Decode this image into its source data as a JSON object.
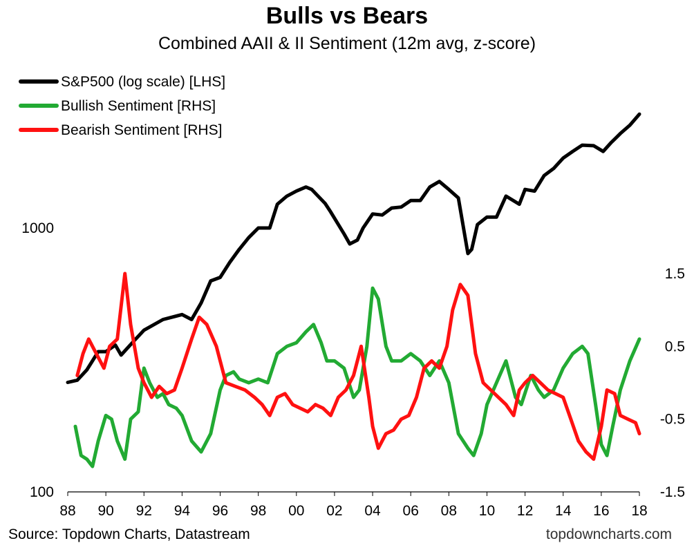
{
  "chart_data": {
    "type": "line",
    "title": "Bulls vs Bears",
    "subtitle": "Combined AAII & II Sentiment (12m avg, z-score)",
    "source": "Source: Topdown Charts, Datastream",
    "brand": "topdowncharts.com",
    "x_ticks": [
      "88",
      "90",
      "92",
      "94",
      "96",
      "98",
      "00",
      "02",
      "04",
      "06",
      "08",
      "10",
      "12",
      "14",
      "16",
      "18"
    ],
    "x_range": [
      1988,
      2018
    ],
    "left_axis": {
      "scale": "log",
      "range": [
        100,
        4000
      ],
      "ticks": [
        "100",
        "1000"
      ]
    },
    "right_axis": {
      "scale": "linear",
      "range": [
        -1.5,
        1.5
      ],
      "ticks": [
        "1.5",
        "0.5",
        "-0.5",
        "-1.5"
      ]
    },
    "legend": {
      "position": "top-left"
    },
    "colors": {
      "sp500": "#000000",
      "bullish": "#22aa33",
      "bearish": "#ff1111"
    },
    "series": [
      {
        "name": "S&P500 (log scale) [LHS]",
        "axis": "left",
        "x": [
          1988.0,
          1988.5,
          1989.0,
          1989.6,
          1990.0,
          1990.5,
          1990.8,
          1991.5,
          1992.0,
          1993.0,
          1994.0,
          1994.5,
          1995.0,
          1995.5,
          1996.0,
          1996.5,
          1997.0,
          1997.5,
          1998.0,
          1998.6,
          1999.0,
          1999.5,
          2000.0,
          2000.5,
          2000.8,
          2001.5,
          2001.8,
          2002.5,
          2002.8,
          2003.2,
          2003.5,
          2004.0,
          2004.5,
          2005.0,
          2005.5,
          2006.0,
          2006.5,
          2007.0,
          2007.5,
          2008.0,
          2008.5,
          2009.0,
          2009.2,
          2009.5,
          2010.0,
          2010.5,
          2011.0,
          2011.7,
          2012.0,
          2012.5,
          2013.0,
          2013.5,
          2014.0,
          2014.5,
          2015.0,
          2015.6,
          2016.1,
          2016.5,
          2017.0,
          2017.5,
          2018.0
        ],
        "values": [
          260,
          265,
          290,
          340,
          340,
          360,
          330,
          375,
          410,
          450,
          470,
          450,
          520,
          630,
          650,
          740,
          830,
          920,
          1000,
          1000,
          1230,
          1320,
          1380,
          1430,
          1400,
          1240,
          1150,
          950,
          870,
          900,
          1000,
          1130,
          1120,
          1190,
          1200,
          1270,
          1270,
          1430,
          1500,
          1400,
          1300,
          800,
          830,
          1030,
          1100,
          1100,
          1320,
          1230,
          1400,
          1380,
          1580,
          1680,
          1840,
          1950,
          2060,
          2050,
          1950,
          2100,
          2280,
          2450,
          2700
        ]
      },
      {
        "name": "Bullish Sentiment [RHS]",
        "axis": "right",
        "x": [
          1988.4,
          1988.7,
          1989.0,
          1989.3,
          1989.6,
          1990.0,
          1990.3,
          1990.6,
          1991.0,
          1991.3,
          1991.7,
          1992.0,
          1992.3,
          1992.7,
          1993.0,
          1993.3,
          1993.7,
          1994.0,
          1994.5,
          1995.0,
          1995.5,
          1996.0,
          1996.3,
          1996.7,
          1997.0,
          1997.5,
          1998.0,
          1998.5,
          1999.0,
          1999.5,
          2000.0,
          2000.5,
          2000.9,
          2001.3,
          2001.6,
          2002.0,
          2002.5,
          2003.0,
          2003.3,
          2003.7,
          2004.0,
          2004.3,
          2004.7,
          2005.0,
          2005.5,
          2006.0,
          2006.5,
          2007.0,
          2007.5,
          2008.0,
          2008.5,
          2009.0,
          2009.3,
          2009.7,
          2010.0,
          2010.5,
          2011.0,
          2011.5,
          2011.8,
          2012.3,
          2012.7,
          2013.0,
          2013.5,
          2014.0,
          2014.5,
          2015.0,
          2015.3,
          2015.7,
          2016.0,
          2016.3,
          2016.6,
          2017.0,
          2017.5,
          2018.0
        ],
        "values": [
          -0.6,
          -1.0,
          -1.05,
          -1.15,
          -0.8,
          -0.45,
          -0.5,
          -0.8,
          -1.05,
          -0.5,
          -0.4,
          0.2,
          0.0,
          -0.2,
          -0.15,
          -0.3,
          -0.35,
          -0.45,
          -0.8,
          -0.95,
          -0.7,
          -0.1,
          0.1,
          0.15,
          0.05,
          0.0,
          0.05,
          0.0,
          0.4,
          0.5,
          0.55,
          0.7,
          0.8,
          0.55,
          0.3,
          0.3,
          0.2,
          -0.2,
          -0.1,
          0.5,
          1.3,
          1.15,
          0.5,
          0.3,
          0.3,
          0.4,
          0.3,
          0.1,
          0.3,
          0.0,
          -0.7,
          -0.9,
          -1.0,
          -0.7,
          -0.3,
          0.0,
          0.3,
          -0.2,
          -0.3,
          0.1,
          -0.1,
          -0.2,
          -0.1,
          0.2,
          0.4,
          0.5,
          0.4,
          -0.3,
          -0.85,
          -1.0,
          -0.6,
          -0.1,
          0.3,
          0.6
        ]
      },
      {
        "name": "Bearish Sentiment [RHS]",
        "axis": "right",
        "x": [
          1988.5,
          1988.8,
          1989.1,
          1989.5,
          1989.9,
          1990.2,
          1990.6,
          1991.0,
          1991.3,
          1991.7,
          1992.0,
          1992.4,
          1992.8,
          1993.2,
          1993.6,
          1994.0,
          1994.5,
          1994.9,
          1995.3,
          1995.8,
          1996.3,
          1996.8,
          1997.3,
          1997.8,
          1998.2,
          1998.6,
          1999.0,
          1999.4,
          1999.8,
          2000.2,
          2000.6,
          2001.0,
          2001.4,
          2001.8,
          2002.2,
          2002.6,
          2003.0,
          2003.4,
          2003.8,
          2004.0,
          2004.3,
          2004.7,
          2005.1,
          2005.5,
          2005.9,
          2006.3,
          2006.7,
          2007.1,
          2007.5,
          2007.9,
          2008.2,
          2008.6,
          2009.0,
          2009.4,
          2009.8,
          2010.2,
          2010.6,
          2011.0,
          2011.4,
          2011.7,
          2012.0,
          2012.4,
          2012.8,
          2013.2,
          2013.6,
          2014.0,
          2014.4,
          2014.8,
          2015.2,
          2015.6,
          2016.0,
          2016.3,
          2016.7,
          2017.0,
          2017.4,
          2017.8,
          2018.0
        ],
        "values": [
          0.1,
          0.4,
          0.6,
          0.4,
          0.2,
          0.5,
          0.6,
          1.5,
          0.8,
          0.2,
          0.0,
          -0.2,
          -0.05,
          -0.15,
          -0.1,
          0.2,
          0.6,
          0.9,
          0.8,
          0.5,
          0.0,
          -0.05,
          -0.1,
          -0.2,
          -0.3,
          -0.45,
          -0.2,
          -0.15,
          -0.3,
          -0.35,
          -0.4,
          -0.3,
          -0.35,
          -0.45,
          -0.2,
          -0.1,
          0.1,
          0.5,
          -0.2,
          -0.6,
          -0.9,
          -0.7,
          -0.65,
          -0.5,
          -0.45,
          -0.2,
          0.2,
          0.3,
          0.2,
          0.5,
          1.0,
          1.35,
          1.2,
          0.4,
          0.0,
          -0.1,
          -0.2,
          -0.3,
          -0.45,
          -0.1,
          0.0,
          0.1,
          0.0,
          -0.1,
          -0.15,
          -0.2,
          -0.5,
          -0.8,
          -0.95,
          -1.05,
          -0.6,
          -0.1,
          -0.15,
          -0.45,
          -0.5,
          -0.55,
          -0.7
        ]
      }
    ]
  }
}
